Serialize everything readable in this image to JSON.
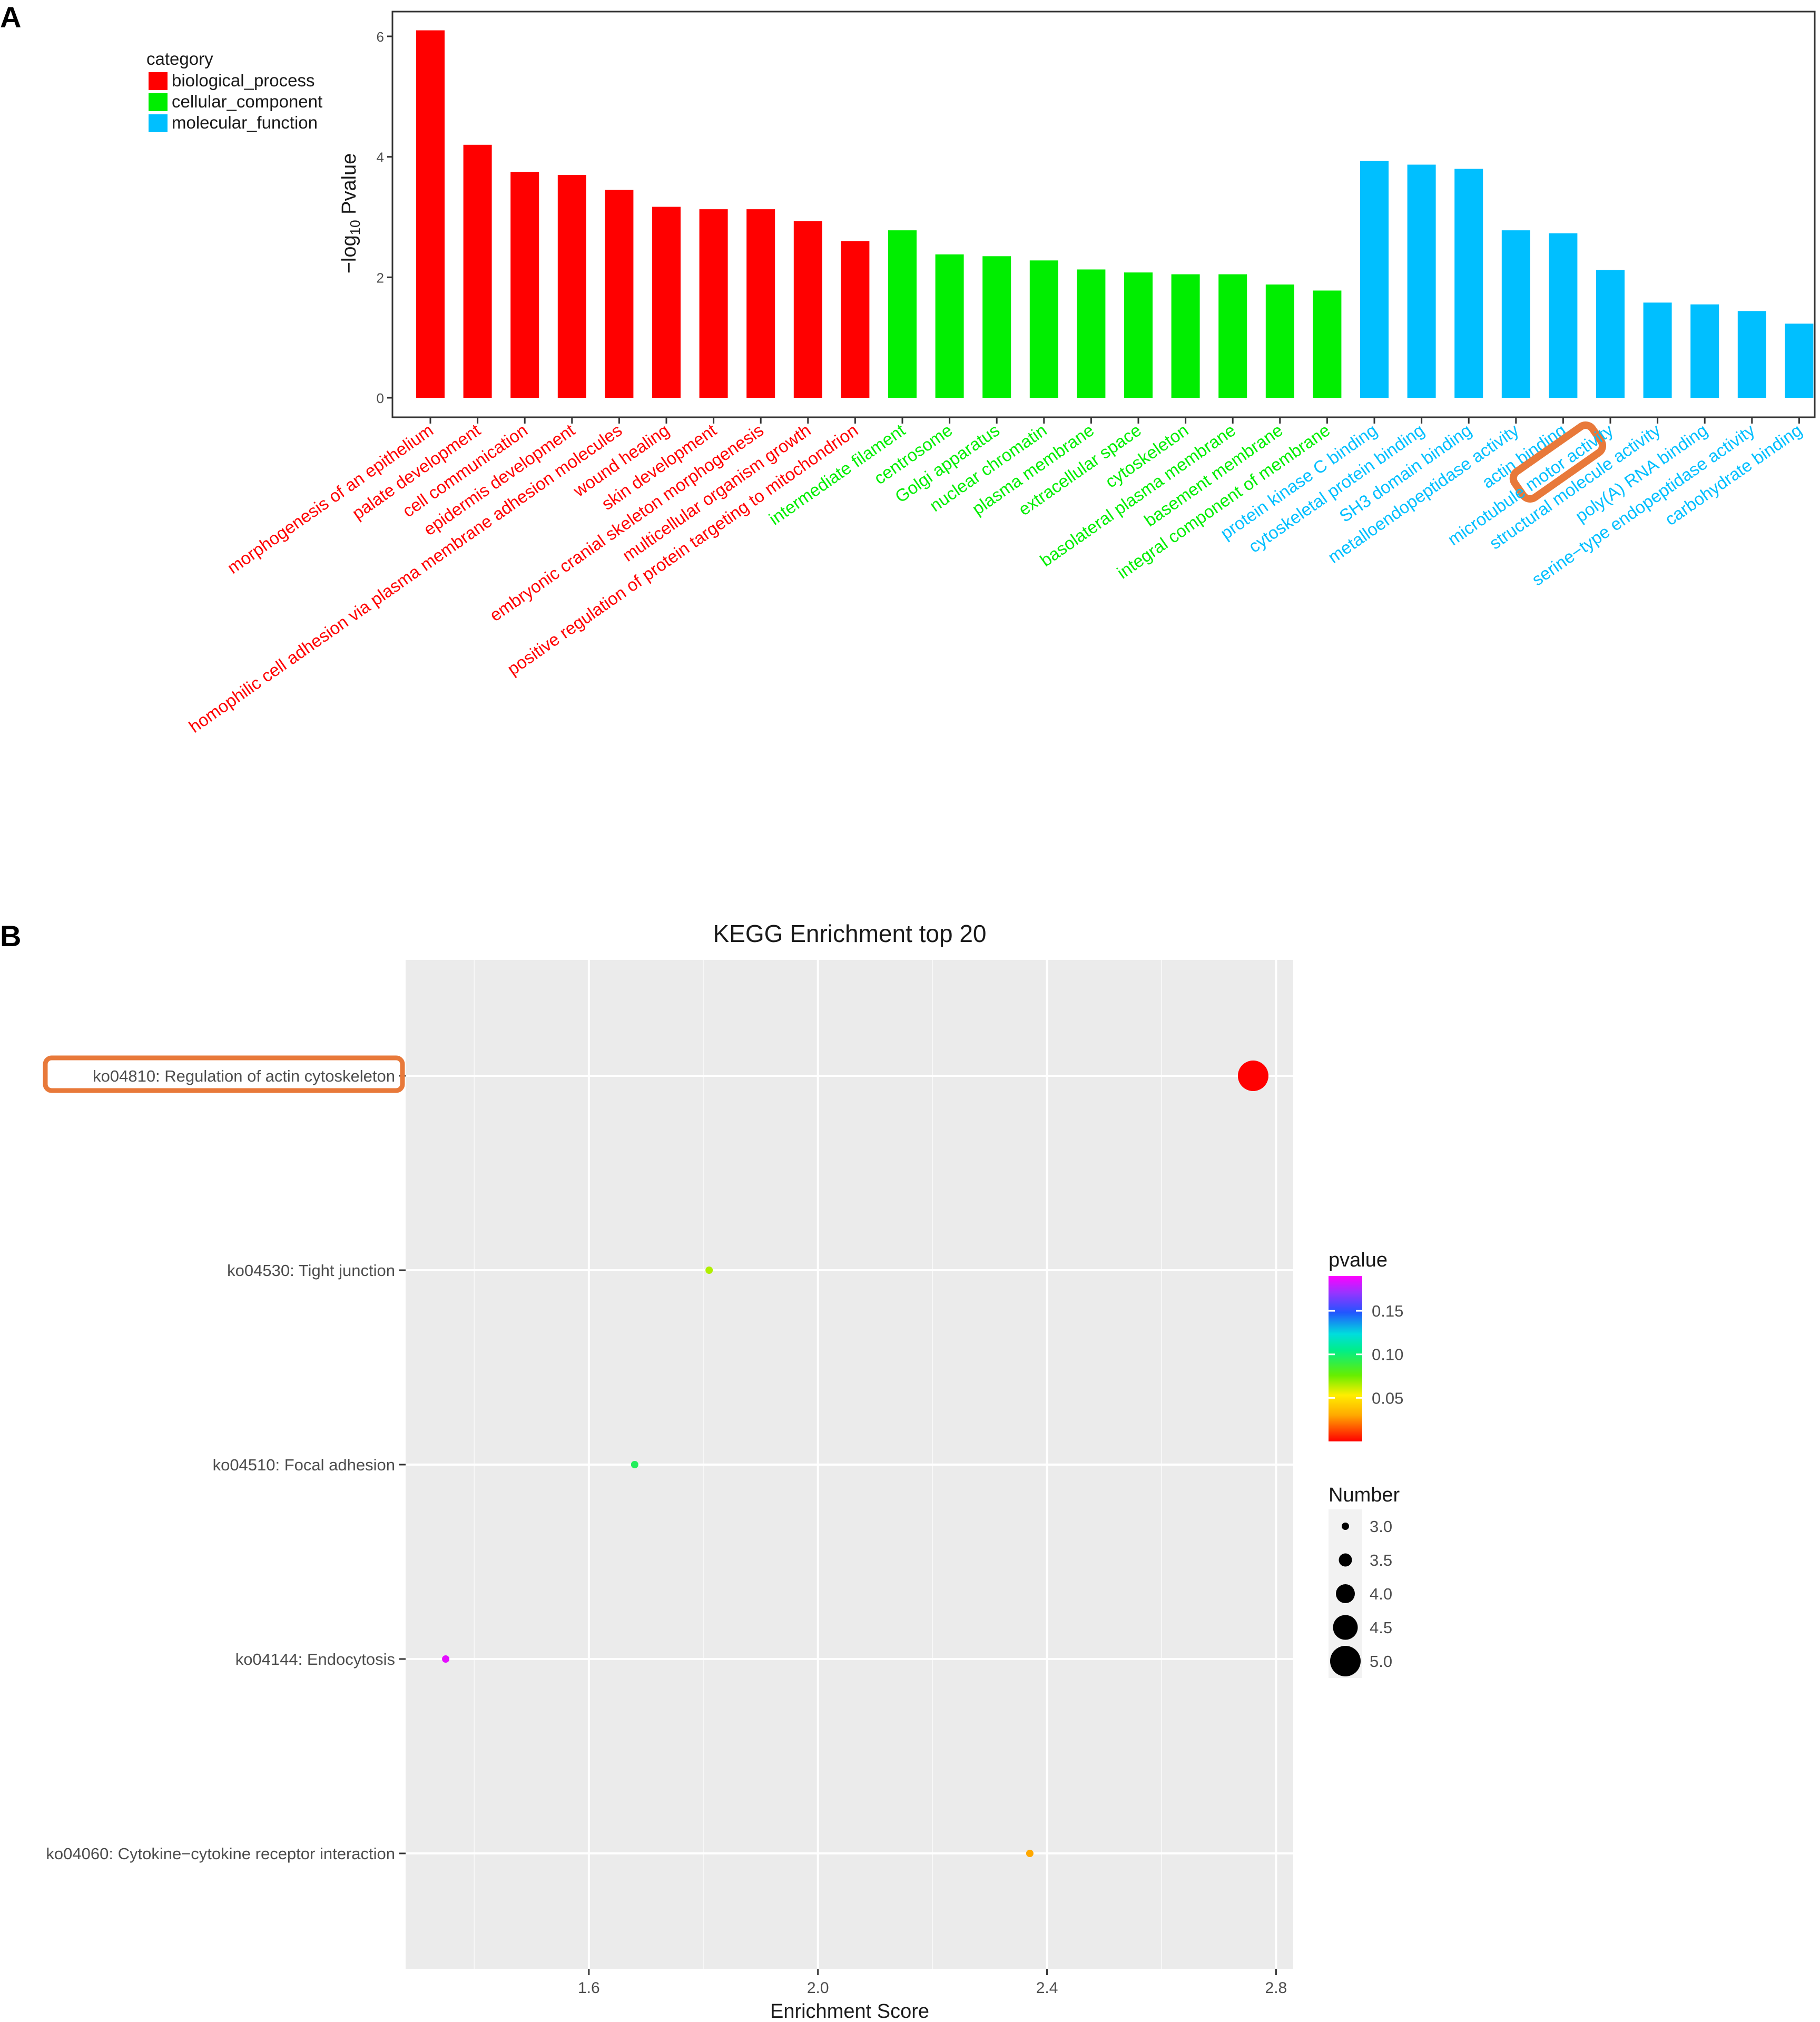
{
  "panel_labels": {
    "a": "A",
    "b": "B"
  },
  "chart_data": [
    {
      "type": "bar",
      "ylabel_prefix": "−log",
      "ylabel_sub": "10",
      "ylabel_suffix": " Pvalue",
      "ylim": [
        0,
        6.3
      ],
      "yticks": [
        0,
        2,
        4,
        6
      ],
      "grid": false,
      "legend_title": "category",
      "legend_position": "top-left",
      "categories_legend": [
        {
          "name": "biological_process",
          "color": "#ff0000"
        },
        {
          "name": "cellular_component",
          "color": "#00ee00"
        },
        {
          "name": "molecular_function",
          "color": "#00bfff"
        }
      ],
      "bars": [
        {
          "label": "morphogenesis of an epithelium",
          "value": 6.1,
          "category": 0
        },
        {
          "label": "palate development",
          "value": 4.2,
          "category": 0
        },
        {
          "label": "cell communication",
          "value": 3.75,
          "category": 0
        },
        {
          "label": "epidermis development",
          "value": 3.7,
          "category": 0
        },
        {
          "label": "homophilic cell adhesion via plasma membrane adhesion molecules",
          "value": 3.45,
          "category": 0
        },
        {
          "label": "wound healing",
          "value": 3.17,
          "category": 0
        },
        {
          "label": "skin development",
          "value": 3.13,
          "category": 0
        },
        {
          "label": "embryonic cranial skeleton morphogenesis",
          "value": 3.13,
          "category": 0
        },
        {
          "label": "multicellular organism growth",
          "value": 2.93,
          "category": 0
        },
        {
          "label": "positive regulation of protein targeting to mitochondrion",
          "value": 2.6,
          "category": 0
        },
        {
          "label": "intermediate filament",
          "value": 2.78,
          "category": 1
        },
        {
          "label": "centrosome",
          "value": 2.38,
          "category": 1
        },
        {
          "label": "Golgi apparatus",
          "value": 2.35,
          "category": 1
        },
        {
          "label": "nuclear chromatin",
          "value": 2.28,
          "category": 1
        },
        {
          "label": "plasma membrane",
          "value": 2.13,
          "category": 1
        },
        {
          "label": "extracellular space",
          "value": 2.08,
          "category": 1
        },
        {
          "label": "cytoskeleton",
          "value": 2.05,
          "category": 1
        },
        {
          "label": "basolateral plasma membrane",
          "value": 2.05,
          "category": 1
        },
        {
          "label": "basement membrane",
          "value": 1.88,
          "category": 1
        },
        {
          "label": "integral component of membrane",
          "value": 1.78,
          "category": 1
        },
        {
          "label": "protein kinase C binding",
          "value": 3.93,
          "category": 2
        },
        {
          "label": "cytoskeletal protein binding",
          "value": 3.87,
          "category": 2
        },
        {
          "label": "SH3 domain binding",
          "value": 3.8,
          "category": 2
        },
        {
          "label": "metalloendopeptidase activity",
          "value": 2.78,
          "category": 2
        },
        {
          "label": "actin binding",
          "value": 2.73,
          "category": 2,
          "highlight": true
        },
        {
          "label": "microtubule motor activity",
          "value": 2.12,
          "category": 2
        },
        {
          "label": "structural molecule activity",
          "value": 1.58,
          "category": 2
        },
        {
          "label": "poly(A) RNA binding",
          "value": 1.55,
          "category": 2
        },
        {
          "label": "serine−type endopeptidase activity",
          "value": 1.44,
          "category": 2
        },
        {
          "label": "carbohydrate binding",
          "value": 1.23,
          "category": 2
        }
      ],
      "highlight_color": "#e8793a"
    },
    {
      "type": "scatter",
      "title": "KEGG Enrichment top 20",
      "xlabel": "Enrichment Score",
      "xlim": [
        1.28,
        2.83
      ],
      "xticks": [
        1.6,
        2.0,
        2.4,
        2.8
      ],
      "xtick_labels": [
        "1.6",
        "2.0",
        "2.4",
        "2.8"
      ],
      "grid": true,
      "legend_position": "right",
      "pathways": [
        {
          "label": "ko04810: Regulation of actin cytoskeleton",
          "x": 2.76,
          "number": 5.0,
          "pvalue": 0.0,
          "highlight": true
        },
        {
          "label": "ko04530: Tight junction",
          "x": 1.81,
          "number": 3.0,
          "pvalue": 0.065
        },
        {
          "label": "ko04510: Focal adhesion",
          "x": 1.68,
          "number": 3.0,
          "pvalue": 0.095
        },
        {
          "label": "ko04144: Endocytosis",
          "x": 1.35,
          "number": 3.0,
          "pvalue": 0.185
        },
        {
          "label": "ko04060: Cytokine−cytokine receptor interaction",
          "x": 2.37,
          "number": 3.0,
          "pvalue": 0.03
        }
      ],
      "colorbar": {
        "title": "pvalue",
        "range": [
          0,
          0.19
        ],
        "ticks": [
          0.05,
          0.1,
          0.15
        ],
        "tick_labels": [
          "0.05",
          "0.10",
          "0.15"
        ]
      },
      "size_legend": {
        "title": "Number",
        "values": [
          3.0,
          3.5,
          4.0,
          4.5,
          5.0
        ],
        "labels": [
          "3.0",
          "3.5",
          "4.0",
          "4.5",
          "5.0"
        ]
      },
      "highlight_color": "#e8793a"
    }
  ]
}
